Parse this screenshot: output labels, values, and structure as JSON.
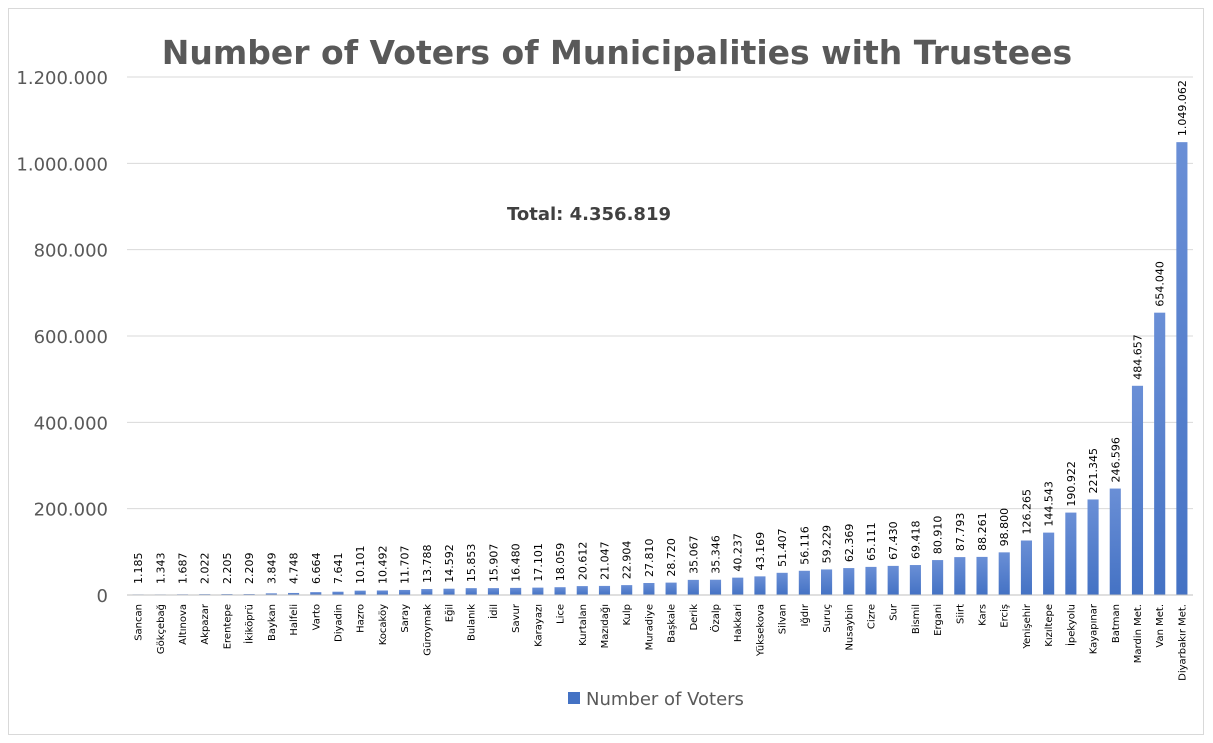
{
  "chart_data": {
    "type": "bar",
    "title": "Number of Voters of Municipalities with Trustees",
    "annotation": "Total: 4.356.819",
    "xlabel": "",
    "ylabel": "",
    "ylim": [
      0,
      1200000
    ],
    "yticks": [
      0,
      200000,
      400000,
      600000,
      800000,
      1000000,
      1200000
    ],
    "ytick_labels": [
      "0",
      "200.000",
      "400.000",
      "600.000",
      "800.000",
      "1.000.000",
      "1.200.000"
    ],
    "grid": true,
    "legend_position": "bottom",
    "color": "#4472C4",
    "categories": [
      "Sancan",
      "Gökçebağ",
      "Altınova",
      "Akpazar",
      "Erentepe",
      "İkiköprü",
      "Baykan",
      "Halfeli",
      "Varto",
      "Diyadin",
      "Hazro",
      "Kocaköy",
      "Saray",
      "Güroymak",
      "Eğil",
      "Bulanık",
      "İdil",
      "Savur",
      "Karayazı",
      "Lice",
      "Kurtalan",
      "Mazıdağı",
      "Kulp",
      "Muradiye",
      "Başkale",
      "Derik",
      "Özalp",
      "Hakkari",
      "Yüksekova",
      "Silvan",
      "Iğdır",
      "Suruç",
      "Nusaybin",
      "Cizre",
      "Sur",
      "Bismil",
      "Ergani",
      "Siirt",
      "Kars",
      "Erciş",
      "Yenişehir",
      "Kızıltepe",
      "İpekyolu",
      "Kayapınar",
      "Batman",
      "Mardin Met.",
      "Van Met.",
      "Diyarbakır Met."
    ],
    "series": [
      {
        "name": "Number of Voters",
        "values": [
          1185,
          1343,
          1687,
          2022,
          2205,
          2209,
          3849,
          4748,
          6664,
          7641,
          10101,
          10492,
          11707,
          13788,
          14592,
          15853,
          15907,
          16480,
          17101,
          18059,
          20612,
          21047,
          22904,
          27810,
          28720,
          35067,
          35346,
          40237,
          43169,
          51407,
          56116,
          59229,
          62369,
          65111,
          67430,
          69418,
          80910,
          87793,
          88261,
          98800,
          126265,
          144543,
          190922,
          221345,
          246596,
          484657,
          654040,
          1049062
        ],
        "labels": [
          "1.185",
          "1.343",
          "1.687",
          "2.022",
          "2.205",
          "2.209",
          "3.849",
          "4.748",
          "6.664",
          "7.641",
          "10.101",
          "10.492",
          "11.707",
          "13.788",
          "14.592",
          "15.853",
          "15.907",
          "16.480",
          "17.101",
          "18.059",
          "20.612",
          "21.047",
          "22.904",
          "27.810",
          "28.720",
          "35.067",
          "35.346",
          "40.237",
          "43.169",
          "51.407",
          "56.116",
          "59.229",
          "62.369",
          "65.111",
          "67.430",
          "69.418",
          "80.910",
          "87.793",
          "88.261",
          "98.800",
          "126.265",
          "144.543",
          "190.922",
          "221.345",
          "246.596",
          "484.657",
          "654.040",
          "1.049.062"
        ]
      }
    ]
  }
}
